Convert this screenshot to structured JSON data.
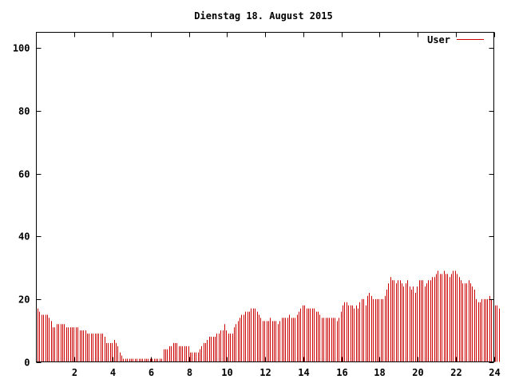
{
  "chart_data": {
    "type": "bar",
    "title": "Dienstag 18. August 2015",
    "xlabel": "",
    "ylabel": "",
    "xlim": [
      0,
      24
    ],
    "ylim": [
      0,
      105
    ],
    "x_ticks": [
      2,
      4,
      6,
      8,
      10,
      12,
      14,
      16,
      18,
      20,
      22,
      24
    ],
    "y_ticks": [
      0,
      20,
      40,
      60,
      80,
      100
    ],
    "grid": false,
    "legend_position": "top-right",
    "colors": {
      "series": "#cc0000",
      "axis": "#000000"
    },
    "series": [
      {
        "name": "User",
        "step_hours": 0.1,
        "values": [
          17,
          16,
          15,
          15,
          15,
          15,
          14,
          13,
          11,
          11,
          12,
          12,
          12,
          12,
          12,
          11,
          11,
          11,
          11,
          11,
          11,
          11,
          10,
          10,
          10,
          10,
          9,
          9,
          9,
          9,
          9,
          9,
          9,
          9,
          9,
          8,
          6,
          6,
          6,
          6,
          7,
          6,
          5,
          3,
          2,
          1,
          1,
          1,
          1,
          1,
          1,
          1,
          1,
          1,
          1,
          1,
          1,
          1,
          1,
          1,
          1,
          1,
          1,
          1,
          1,
          1,
          4,
          4,
          4,
          5,
          5,
          6,
          6,
          6,
          5,
          5,
          5,
          5,
          5,
          5,
          3,
          3,
          3,
          3,
          3,
          4,
          5,
          6,
          6,
          7,
          8,
          8,
          8,
          8,
          9,
          9,
          10,
          10,
          12,
          10,
          9,
          9,
          9,
          11,
          12,
          13,
          14,
          15,
          15,
          16,
          16,
          16,
          17,
          17,
          17,
          16,
          15,
          14,
          13,
          13,
          13,
          13,
          14,
          13,
          13,
          13,
          12,
          13,
          14,
          14,
          14,
          14,
          15,
          14,
          14,
          14,
          15,
          16,
          17,
          18,
          18,
          17,
          17,
          17,
          17,
          17,
          16,
          16,
          15,
          14,
          14,
          14,
          14,
          14,
          14,
          14,
          14,
          13,
          14,
          16,
          18,
          19,
          19,
          18,
          18,
          18,
          17,
          18,
          17,
          19,
          20,
          20,
          18,
          21,
          22,
          21,
          20,
          20,
          20,
          20,
          20,
          20,
          21,
          23,
          25,
          27,
          26,
          26,
          25,
          26,
          26,
          25,
          24,
          25,
          26,
          24,
          23,
          24,
          22,
          24,
          26,
          26,
          26,
          24,
          25,
          26,
          26,
          27,
          27,
          28,
          29,
          28,
          28,
          29,
          28,
          28,
          27,
          28,
          29,
          29,
          28,
          27,
          26,
          25,
          25,
          25,
          26,
          25,
          24,
          23,
          20,
          19,
          19,
          20,
          20,
          20,
          20,
          21,
          20,
          19,
          18,
          18,
          17
        ]
      }
    ]
  }
}
